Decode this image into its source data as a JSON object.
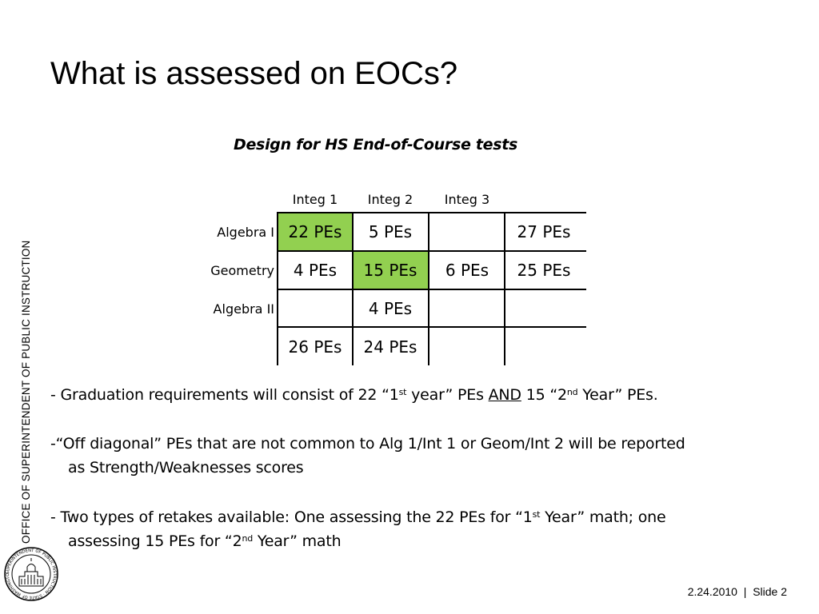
{
  "sidebar": {
    "vertical_text": "OFFICE OF SUPERINTENDENT OF PUBLIC INSTRUCTION"
  },
  "seal": {
    "text": "SUPERINTENDENT OF PUBLIC INSTRUCTION · STATE OF WASHINGTON"
  },
  "slide": {
    "title": "What is assessed on EOCs?",
    "subtitle": "Design for HS End-of-Course tests"
  },
  "table": {
    "columns": [
      "Integ 1",
      "Integ 2",
      "Integ 3"
    ],
    "rows": [
      {
        "label": "Algebra I",
        "cells": [
          "22 PEs",
          "5 PEs",
          "",
          "27 PEs"
        ]
      },
      {
        "label": "Geometry",
        "cells": [
          "4 PEs",
          "15 PEs",
          "6 PEs",
          "25 PEs"
        ]
      },
      {
        "label": "Algebra II",
        "cells": [
          "",
          "4 PEs",
          "",
          ""
        ]
      },
      {
        "label": "",
        "cells": [
          "26 PEs",
          "24 PEs",
          "",
          ""
        ]
      }
    ],
    "highlight_color": "#92d050"
  },
  "bullets": {
    "b1": {
      "a": "- Graduation requirements will consist of 22 “1",
      "sup1": "st",
      "b": " year” PEs ",
      "and": "AND",
      "c": " 15 “2",
      "sup2": "nd",
      "d": " Year” PEs."
    },
    "b2": {
      "line1": "-“Off diagonal” PEs that are not common to Alg 1/Int 1 or Geom/Int 2 will be reported",
      "line2": "as Strength/Weaknesses scores"
    },
    "b3": {
      "a": "- Two types of retakes available: One assessing the 22 PEs for “1",
      "sup1": "st",
      "b": " Year” math; one",
      "c": "assessing 15 PEs for “2",
      "sup2": "nd",
      "d": " Year” math"
    }
  },
  "footer": {
    "date": "2.24.2010",
    "sep": "|",
    "slide": "Slide 2"
  }
}
